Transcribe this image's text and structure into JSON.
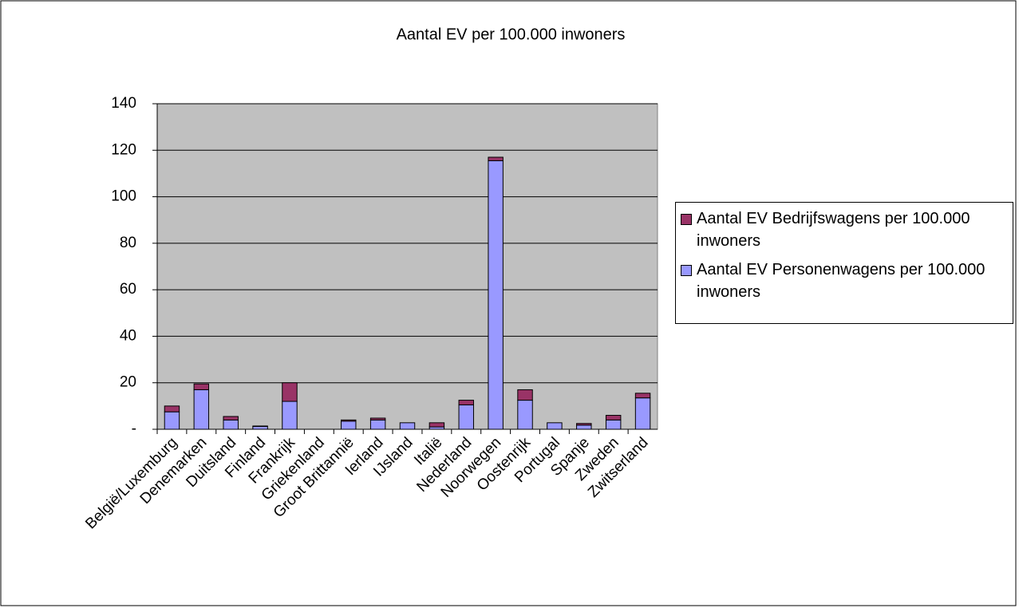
{
  "chart_data": {
    "type": "stacked_bar",
    "title": "Aantal EV per 100.000 inwoners",
    "categories": [
      "België/Luxemburg",
      "Denemarken",
      "Duitsland",
      "Finland",
      "Frankrijk",
      "Griekenland",
      "Groot Brittannië",
      "Ierland",
      "IJsland",
      "Italië",
      "Nederland",
      "Noorwegen",
      "Oostenrijk",
      "Portugal",
      "Spanje",
      "Zweden",
      "Zwitserland"
    ],
    "series": [
      {
        "name": "Aantal EV Personenwagens per 100.000 inwoners",
        "color": "#9999ff",
        "values": [
          7.5,
          17,
          4,
          1.2,
          12,
          0,
          3.5,
          4,
          2.8,
          1,
          10.5,
          115.5,
          12.5,
          2.8,
          1.8,
          4,
          13.5
        ]
      },
      {
        "name": "Aantal EV Bedrijfswagens per 100.000 inwoners",
        "color": "#993366",
        "values": [
          2.5,
          2.5,
          1.5,
          0.2,
          8,
          0,
          0.5,
          0.8,
          0,
          1.8,
          2,
          1.5,
          4.5,
          0,
          0.7,
          2,
          2
        ]
      }
    ],
    "ylim": [
      0,
      140
    ],
    "yticks": [
      {
        "value": 0,
        "label": "-"
      },
      20,
      40,
      60,
      80,
      100,
      120,
      140
    ],
    "grid": true,
    "legend": "right"
  }
}
